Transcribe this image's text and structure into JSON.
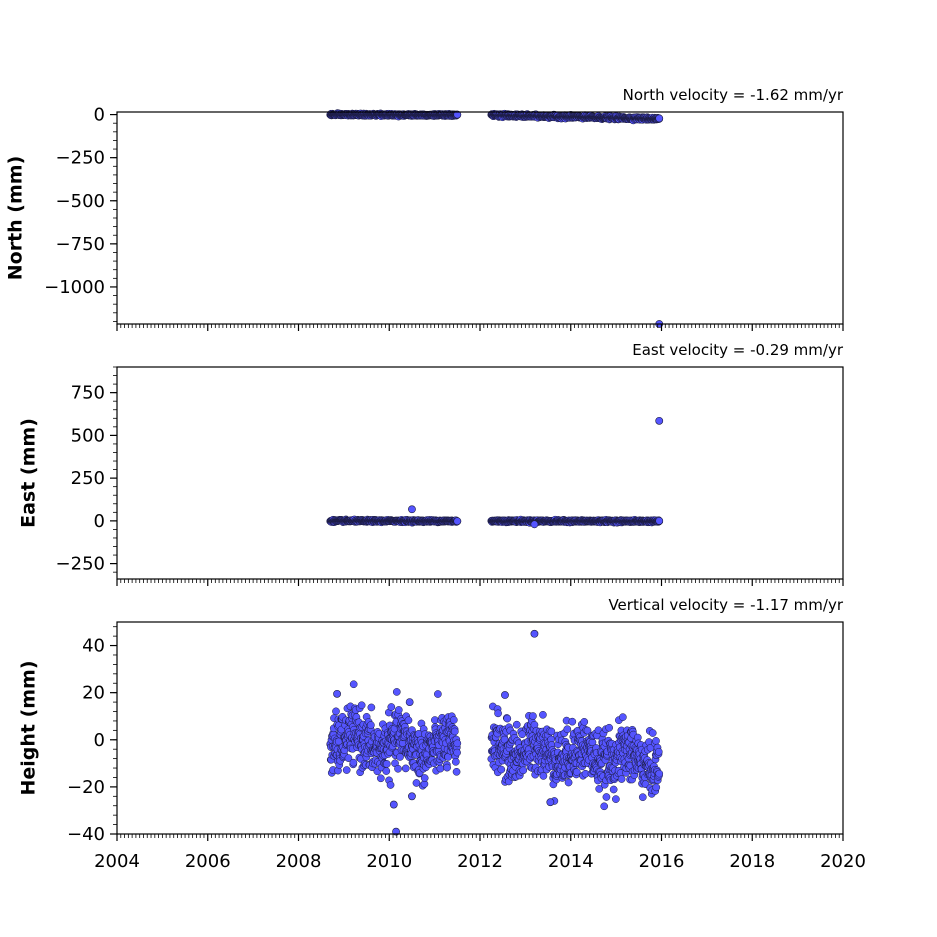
{
  "chart_data": [
    {
      "type": "scatter",
      "title": "North velocity = -1.62 mm/yr",
      "ylabel": "North (mm)",
      "xlim": [
        2004,
        2020
      ],
      "ylim": [
        -1215,
        15
      ],
      "yticks": [
        0,
        -250,
        -500,
        -750,
        -1000
      ],
      "ytick_labels": [
        "0",
        "−250",
        "−500",
        "−750",
        "−1000"
      ],
      "point_color": "#5555ff",
      "edge_color": "#1a1a3a",
      "segments": [
        {
          "start": 2008.7,
          "end": 2011.5,
          "base_start": 0,
          "base_end": -3,
          "noise": 3
        },
        {
          "start": 2012.25,
          "end": 2015.95,
          "base_start": -3,
          "base_end": -25,
          "noise": 4
        }
      ],
      "outliers": [
        {
          "x": 2011.5,
          "y": 0
        },
        {
          "x": 2015.95,
          "y": -22
        },
        {
          "x": 2015.95,
          "y": -1215
        }
      ]
    },
    {
      "type": "scatter",
      "title": "East velocity = -0.29 mm/yr",
      "ylabel": "East (mm)",
      "xlim": [
        2004,
        2020
      ],
      "ylim": [
        -340,
        900
      ],
      "yticks": [
        750,
        500,
        250,
        0,
        -250
      ],
      "ytick_labels": [
        "750",
        "500",
        "250",
        "0",
        "−250"
      ],
      "point_color": "#5555ff",
      "edge_color": "#1a1a3a",
      "segments": [
        {
          "start": 2008.7,
          "end": 2011.5,
          "base_start": 0,
          "base_end": -1,
          "noise": 3
        },
        {
          "start": 2012.25,
          "end": 2015.95,
          "base_start": -1,
          "base_end": -2,
          "noise": 3
        }
      ],
      "outliers": [
        {
          "x": 2010.5,
          "y": 68
        },
        {
          "x": 2013.2,
          "y": -20
        },
        {
          "x": 2011.5,
          "y": -2
        },
        {
          "x": 2015.95,
          "y": 585
        },
        {
          "x": 2015.95,
          "y": 0
        }
      ]
    },
    {
      "type": "scatter",
      "title": "Vertical velocity = -1.17 mm/yr",
      "ylabel": "Height (mm)",
      "xlim": [
        2004,
        2020
      ],
      "ylim": [
        -40,
        50
      ],
      "yticks": [
        40,
        20,
        0,
        -20,
        -40
      ],
      "ytick_labels": [
        "40",
        "20",
        "0",
        "−20",
        "−40"
      ],
      "xticks": [
        2004,
        2006,
        2008,
        2010,
        2012,
        2014,
        2016,
        2018,
        2020
      ],
      "xtick_labels": [
        "2004",
        "2006",
        "2008",
        "2010",
        "2012",
        "2014",
        "2016",
        "2018",
        "2020"
      ],
      "point_color": "#5555ff",
      "edge_color": "#1a1a3a",
      "segments": [
        {
          "start": 2008.7,
          "end": 2011.5,
          "base_start": 0,
          "base_end": -4,
          "noise": 6
        },
        {
          "start": 2012.25,
          "end": 2015.95,
          "base_start": -3,
          "base_end": -9,
          "noise": 6
        }
      ],
      "outliers": [
        {
          "x": 2013.2,
          "y": 45
        },
        {
          "x": 2010.15,
          "y": -39
        },
        {
          "x": 2008.85,
          "y": 19.5
        },
        {
          "x": 2012.55,
          "y": 19
        },
        {
          "x": 2010.45,
          "y": 16
        },
        {
          "x": 2010.1,
          "y": -27.5
        },
        {
          "x": 2013.55,
          "y": -26.5
        },
        {
          "x": 2010.5,
          "y": -24
        }
      ]
    }
  ]
}
